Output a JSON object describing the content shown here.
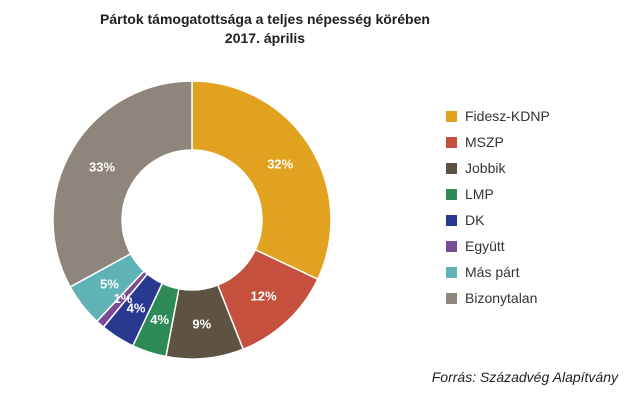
{
  "chart_data": {
    "type": "pie",
    "donut": true,
    "title": "Pártok támogatottsága a teljes népesség körében",
    "subtitle": "2017. április",
    "series": [
      {
        "name": "",
        "labels": [
          "Fidesz-KDNP",
          "MSZP",
          "Jobbik",
          "LMP",
          "DK",
          "Együtt",
          "Más párt",
          "Bizonytalan"
        ],
        "values": [
          32,
          12,
          9,
          4,
          4,
          1,
          5,
          33
        ],
        "colors": [
          "#E0A21F",
          "#C5503E",
          "#5E5243",
          "#2E8A57",
          "#29398F",
          "#7A4B97",
          "#5FB2B6",
          "#8E857C"
        ],
        "value_labels": [
          "32%",
          "12%",
          "9%",
          "4%",
          "4%",
          "1%",
          "5%",
          "33%"
        ]
      }
    ],
    "legend_position": "right",
    "source": "Forrás: Századvég Alapítvány"
  }
}
